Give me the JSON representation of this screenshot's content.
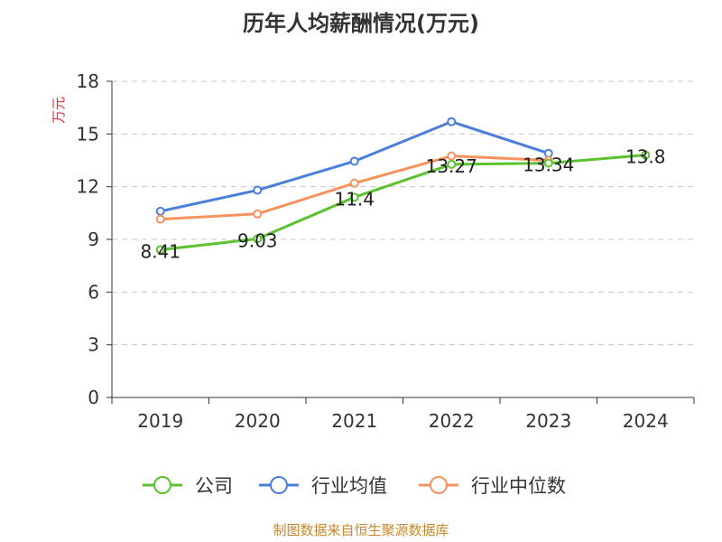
{
  "chart_data": {
    "type": "line",
    "title": "历年人均薪酬情况(万元)",
    "ylabel": "万元",
    "xlabel": "",
    "categories": [
      "2019",
      "2020",
      "2021",
      "2022",
      "2023",
      "2024"
    ],
    "ylim": [
      0,
      18
    ],
    "yticks": [
      0,
      3,
      6,
      9,
      12,
      15,
      18
    ],
    "grid": true,
    "legend_position": "bottom",
    "series": [
      {
        "name": "公司",
        "color": "#5cc22f",
        "values": [
          8.41,
          9.03,
          11.4,
          13.27,
          13.34,
          13.8
        ],
        "labels": [
          "8.41",
          "9.03",
          "11.4",
          "13.27",
          "13.34",
          "13.8"
        ]
      },
      {
        "name": "行业均值",
        "color": "#4a7fdb",
        "values": [
          10.6,
          11.8,
          13.45,
          15.7,
          13.9,
          null
        ]
      },
      {
        "name": "行业中位数",
        "color": "#f5925e",
        "values": [
          10.15,
          10.45,
          12.2,
          13.75,
          13.5,
          null
        ]
      }
    ]
  },
  "source": "制图数据来自恒生聚源数据库"
}
